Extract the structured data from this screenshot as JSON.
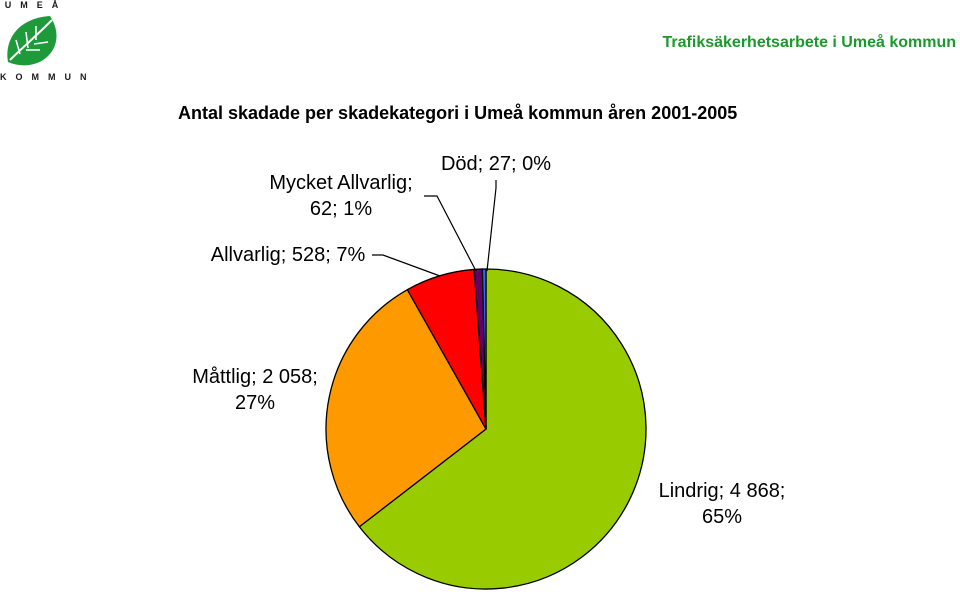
{
  "header": {
    "logo_top_text": "UMEÅ",
    "logo_bottom_text": "KOMMUN",
    "right_title": "Trafiksäkerhetsarbete i Umeå kommun"
  },
  "chart_data": {
    "type": "pie",
    "title": "Antal skadade per skadekategori i Umeå kommun åren 2001-2005",
    "slices": [
      {
        "name": "Lindrig",
        "value": 4868,
        "percent": 65,
        "color": "#99cc00",
        "label_lines": [
          "Lindrig; 4 868;",
          "65%"
        ]
      },
      {
        "name": "Måttlig",
        "value": 2058,
        "percent": 27,
        "color": "#ff9900",
        "label_lines": [
          "Måttlig; 2 058;",
          "27%"
        ]
      },
      {
        "name": "Allvarlig",
        "value": 528,
        "percent": 7,
        "color": "#ff0000",
        "label_lines": [
          "Allvarlig; 528; 7%"
        ]
      },
      {
        "name": "Mycket Allvarlig",
        "value": 62,
        "percent": 1,
        "color": "#660066",
        "label_lines": [
          "Mycket Allvarlig;",
          "62; 1%"
        ]
      },
      {
        "name": "Död",
        "value": 27,
        "percent": 0,
        "color": "#3366ff",
        "label_lines": [
          "Död; 27; 0%"
        ]
      }
    ]
  }
}
